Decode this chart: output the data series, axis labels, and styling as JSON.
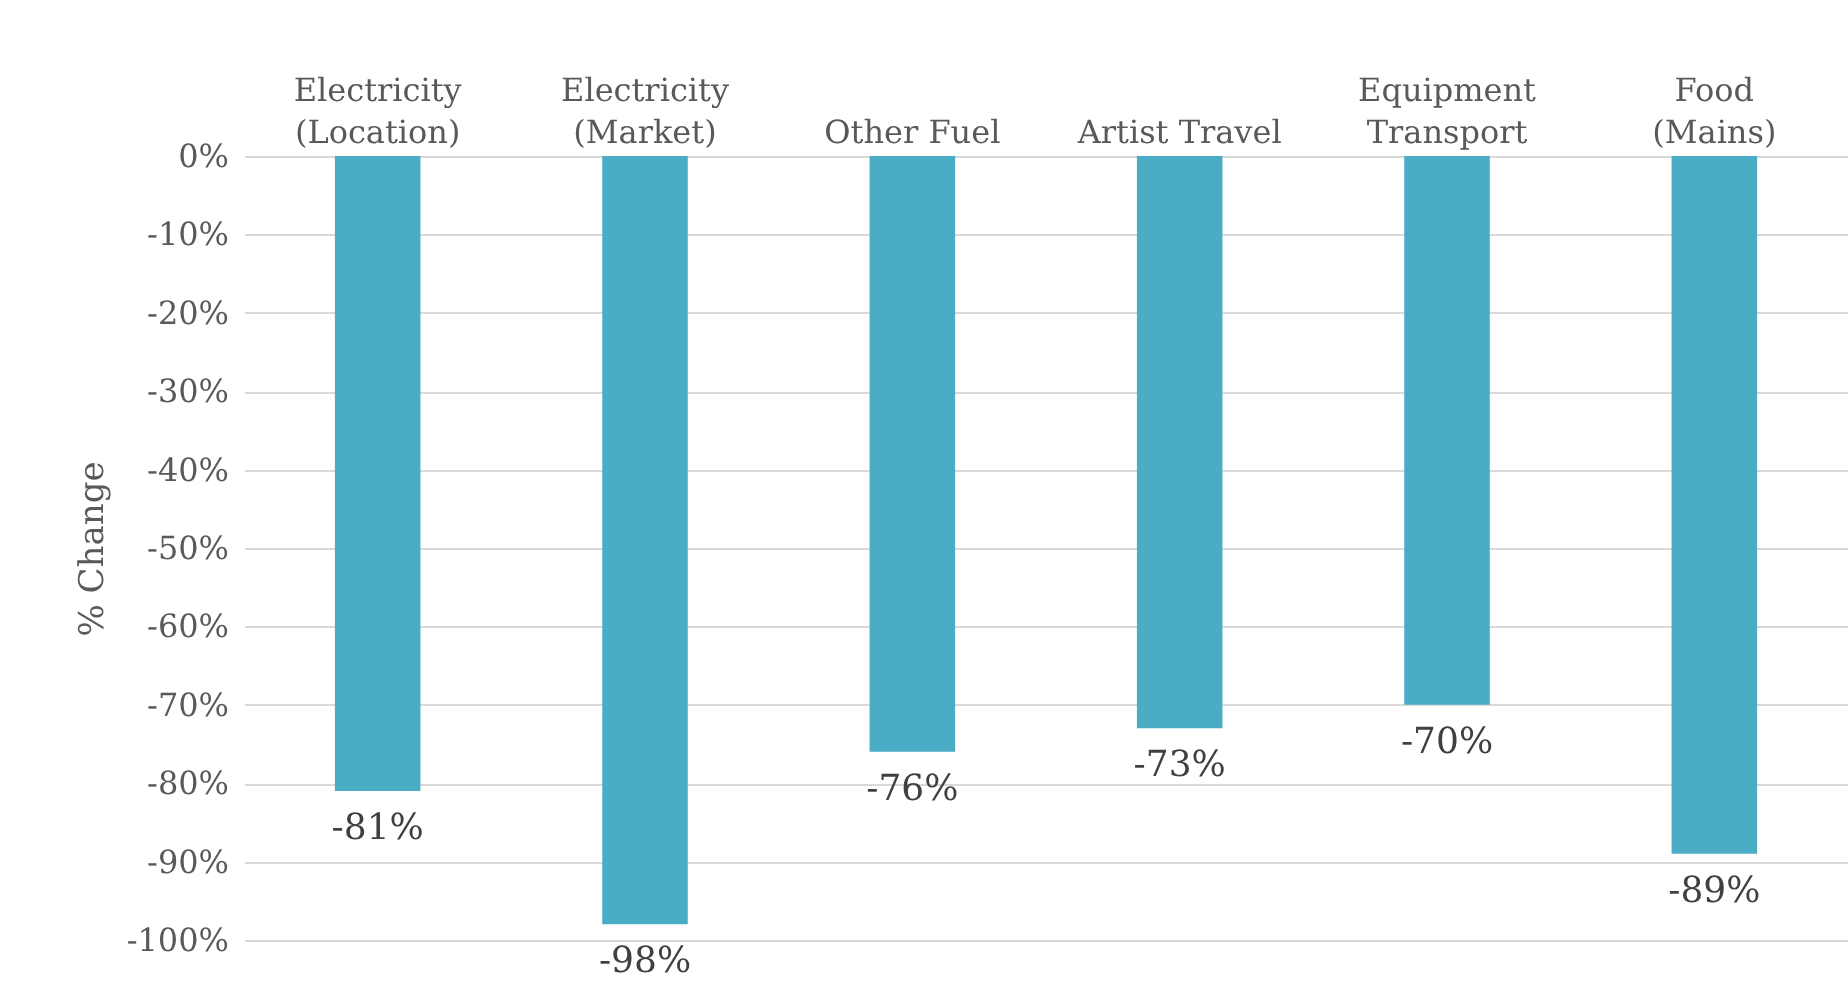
{
  "chart_data": {
    "type": "bar",
    "ylabel": "% Change",
    "categories": [
      "Electricity\n(Location)",
      "Electricity\n(Market)",
      "Other Fuel",
      "Artist Travel",
      "Equipment\nTransport",
      "Food\n(Mains)"
    ],
    "values": [
      -81,
      -98,
      -76,
      -73,
      -70,
      -89
    ],
    "value_labels": [
      "-81%",
      "-98%",
      "-76%",
      "-73%",
      "-70%",
      "-89%"
    ],
    "color": "#4bacc6",
    "ylim": [
      -100,
      0
    ],
    "yticks": [
      {
        "value": 0,
        "label": "0%"
      },
      {
        "value": -10,
        "label": "-10%"
      },
      {
        "value": -20,
        "label": "-20%"
      },
      {
        "value": -30,
        "label": "-30%"
      },
      {
        "value": -40,
        "label": "-40%"
      },
      {
        "value": -50,
        "label": "-50%"
      },
      {
        "value": -60,
        "label": "-60%"
      },
      {
        "value": -70,
        "label": "-70%"
      },
      {
        "value": -80,
        "label": "-80%"
      },
      {
        "value": -90,
        "label": "-90%"
      },
      {
        "value": -100,
        "label": "-100%"
      }
    ],
    "grid": "y"
  }
}
